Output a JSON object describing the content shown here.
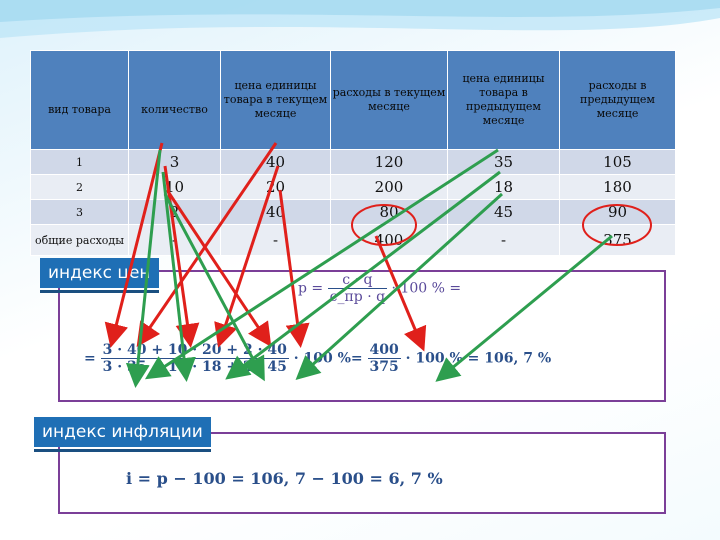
{
  "table": {
    "headers": [
      "вид товара",
      "количество",
      "цена единицы товара в текущем месяце",
      "расходы в текущем месяце",
      "цена единицы товара в предыдущем месяце",
      "расходы в предыдущем месяце"
    ],
    "rows": [
      [
        "1",
        "3",
        "40",
        "120",
        "35",
        "105"
      ],
      [
        "2",
        "10",
        "20",
        "200",
        "18",
        "180"
      ],
      [
        "3",
        "2",
        "40",
        "80",
        "45",
        "90"
      ],
      [
        "общие расходы",
        "-",
        "-",
        "400",
        "-",
        "375"
      ]
    ]
  },
  "section1": {
    "title": "индекс цен",
    "formula_top_pre": "p =",
    "frac1_num": "c · q",
    "frac1_den": "c_пр · q",
    "formula_top_post": "· 100 % =",
    "eq_lead": "=",
    "frac2_num": "3 · 40 + 10 · 20 + 2 · 40",
    "frac2_den": "3 · 35 + 10 · 18 + 2 · 45",
    "mid": "· 100 %=",
    "frac3_num": "400",
    "frac3_den": "375",
    "result": "· 100 % = 106, 7 %"
  },
  "section2": {
    "title": "индекс инфляции",
    "formula": "i = p − 100 = 106, 7 − 100 = 6, 7 %"
  },
  "colors": {
    "header_bg": "#4f81bd",
    "row_odd": "#d0d8e8",
    "row_even": "#e9edf4",
    "label_bg": "#1f6fb5",
    "frame": "#7b3f98",
    "arrow_red": "#e0201b",
    "arrow_green": "#2e9e4f",
    "circle": "#e0201b"
  }
}
